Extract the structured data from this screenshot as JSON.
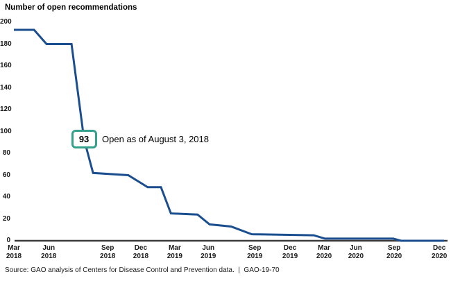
{
  "title": "Number of open recommendations",
  "source_line": "Source: GAO analysis of Centers for Disease Control and Prevention data.  |  GAO-19-70",
  "annotation": {
    "value_label": "93",
    "text": "Open as of August 3, 2018",
    "box_border_color": "#35a08c"
  },
  "chart_data": {
    "type": "line",
    "title": "Number of open recommendations",
    "xlabel": "",
    "ylabel": "",
    "ylim": [
      0,
      200
    ],
    "yticks": [
      0,
      20,
      40,
      60,
      80,
      100,
      120,
      140,
      160,
      180,
      200
    ],
    "grid": false,
    "legend": false,
    "line_color": "#1b4e8e",
    "axis_color": "#3a3a3a",
    "series": [
      {
        "name": "Number of open recommendations",
        "points": [
          {
            "date": "Mar 2018",
            "value": 193,
            "xpct": 0
          },
          {
            "date": "May 2018",
            "value": 193,
            "xpct": 4.7
          },
          {
            "date": "Jun 2018",
            "value": 180,
            "xpct": 7.6
          },
          {
            "date": "Jul 2018",
            "value": 180,
            "xpct": 13.4
          },
          {
            "date": "Aug 3, 2018",
            "value": 93,
            "xpct": 16.3
          },
          {
            "date": "Aug 2018",
            "value": 62,
            "xpct": 18.4
          },
          {
            "date": "Nov 2018",
            "value": 60,
            "xpct": 26.6
          },
          {
            "date": "Jan 2019",
            "value": 49,
            "xpct": 31.1
          },
          {
            "date": "Feb 2019",
            "value": 49,
            "xpct": 34.2
          },
          {
            "date": "Mar 2019",
            "value": 25,
            "xpct": 36.5
          },
          {
            "date": "May 2019",
            "value": 24,
            "xpct": 42.7
          },
          {
            "date": "Jun 2019",
            "value": 15,
            "xpct": 45.5
          },
          {
            "date": "Aug 2019",
            "value": 13,
            "xpct": 50.5
          },
          {
            "date": "Sep 2019",
            "value": 6,
            "xpct": 55.3
          },
          {
            "date": "Feb 2020",
            "value": 5,
            "xpct": 69.7
          },
          {
            "date": "Mar 2020",
            "value": 2,
            "xpct": 72.3
          },
          {
            "date": "Sep 2020",
            "value": 2,
            "xpct": 88.2
          },
          {
            "date": "Oct 2020",
            "value": 0,
            "xpct": 90.0
          },
          {
            "date": "Dec 2020",
            "value": 0,
            "xpct": 100
          }
        ]
      }
    ],
    "xticks": [
      {
        "month": "Mar",
        "year": "2018",
        "xpct": 0
      },
      {
        "month": "Jun",
        "year": "2018",
        "xpct": 8.1
      },
      {
        "month": "Sep",
        "year": "2018",
        "xpct": 21.8
      },
      {
        "month": "Dec",
        "year": "2018",
        "xpct": 29.5
      },
      {
        "month": "Mar",
        "year": "2019",
        "xpct": 37.4
      },
      {
        "month": "Jun",
        "year": "2019",
        "xpct": 45.2
      },
      {
        "month": "Sep",
        "year": "2019",
        "xpct": 56.0
      },
      {
        "month": "Dec",
        "year": "2019",
        "xpct": 64.2
      },
      {
        "month": "Mar",
        "year": "2020",
        "xpct": 72.1
      },
      {
        "month": "Jun",
        "year": "2020",
        "xpct": 79.5
      },
      {
        "month": "Sep",
        "year": "2020",
        "xpct": 88.4
      },
      {
        "month": "Dec",
        "year": "2020",
        "xpct": 98.9
      }
    ],
    "annotation_point": {
      "value": 93,
      "xpct": 16.3,
      "label": "Open as of August 3, 2018"
    }
  }
}
